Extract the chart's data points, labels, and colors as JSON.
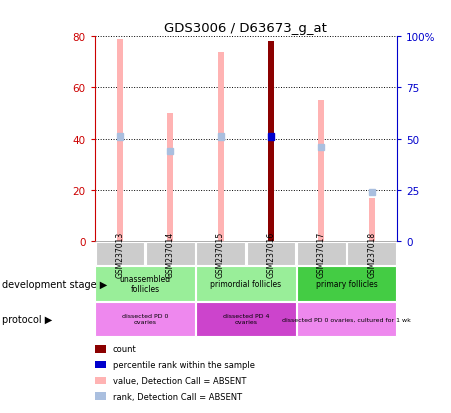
{
  "title": "GDS3006 / D63673_g_at",
  "samples": [
    "GSM237013",
    "GSM237014",
    "GSM237015",
    "GSM237016",
    "GSM237017",
    "GSM237018"
  ],
  "bar_values": [
    79,
    50,
    74,
    78,
    55,
    17
  ],
  "bar_colors": [
    "#ffb3b3",
    "#ffb3b3",
    "#ffb3b3",
    "#8b0000",
    "#ffb3b3",
    "#ffb3b3"
  ],
  "rank_values": [
    51,
    44,
    51,
    51,
    46,
    24
  ],
  "rank_colors": [
    "#aabfdf",
    "#aabfdf",
    "#aabfdf",
    "#0000cc",
    "#aabfdf",
    "#aabfdf"
  ],
  "ylim_left": [
    0,
    80
  ],
  "ylim_right": [
    0,
    100
  ],
  "yticks_left": [
    0,
    20,
    40,
    60,
    80
  ],
  "yticks_right": [
    0,
    25,
    50,
    75,
    100
  ],
  "ytick_labels_right": [
    "0",
    "25",
    "50",
    "75",
    "100%"
  ],
  "legend_items": [
    {
      "color": "#8b0000",
      "label": "count"
    },
    {
      "color": "#0000cc",
      "label": "percentile rank within the sample"
    },
    {
      "color": "#ffb3b3",
      "label": "value, Detection Call = ABSENT"
    },
    {
      "color": "#aabfdf",
      "label": "rank, Detection Call = ABSENT"
    }
  ],
  "background_color": "#ffffff",
  "left_axis_color": "#cc0000",
  "right_axis_color": "#0000cc",
  "sample_bg_color": "#cccccc",
  "dev_stage_label": "development stage",
  "protocol_label": "protocol",
  "dev_groups": [
    {
      "label": "unassembled\nfollicles",
      "start": 0,
      "end": 1,
      "color": "#99ee99"
    },
    {
      "label": "primordial follicles",
      "start": 2,
      "end": 3,
      "color": "#99ee99"
    },
    {
      "label": "primary follicles",
      "start": 4,
      "end": 5,
      "color": "#44cc44"
    }
  ],
  "prot_groups": [
    {
      "label": "dissected PD 0\novaries",
      "start": 0,
      "end": 1,
      "color": "#ee88ee"
    },
    {
      "label": "dissected PD 4\novaries",
      "start": 2,
      "end": 3,
      "color": "#cc44cc"
    },
    {
      "label": "dissected PD 0 ovaries, cultured for 1 wk",
      "start": 4,
      "end": 5,
      "color": "#ee88ee"
    }
  ]
}
